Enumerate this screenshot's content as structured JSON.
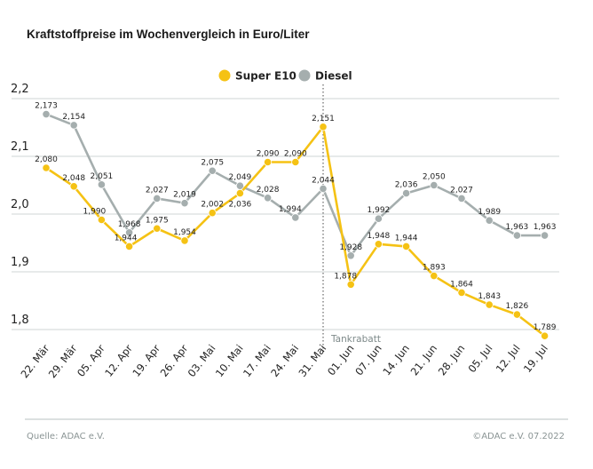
{
  "chart_data": {
    "type": "line",
    "title": "Kraftstoffpreise im Wochenvergleich in Euro/Liter",
    "categories": [
      "22. Mär",
      "29. Mär",
      "05. Apr",
      "12. Apr",
      "19. Apr",
      "26. Apr",
      "03. Mai",
      "10. Mai",
      "17. Mai",
      "24. Mai",
      "31. Mai",
      "01. Jun",
      "07. Jun",
      "14. Jun",
      "21. Jun",
      "28. Jun",
      "05. Jul",
      "12. Jul",
      "19. Jul"
    ],
    "series": [
      {
        "name": "Super E10",
        "color": "#f5c214",
        "values": [
          2.08,
          2.048,
          1.99,
          1.944,
          1.975,
          1.954,
          2.002,
          2.036,
          2.09,
          2.09,
          2.151,
          1.878,
          1.948,
          1.944,
          1.893,
          1.864,
          1.843,
          1.826,
          1.789
        ]
      },
      {
        "name": "Diesel",
        "color": "#a5aeae",
        "values": [
          2.173,
          2.154,
          2.051,
          1.968,
          2.027,
          2.019,
          2.075,
          2.049,
          2.028,
          1.994,
          2.044,
          1.928,
          1.992,
          2.036,
          2.05,
          2.027,
          1.989,
          1.963,
          1.963
        ]
      }
    ],
    "yticks": [
      "1,8",
      "1,9",
      "2,0",
      "2,1",
      "2,2"
    ],
    "ylim": [
      1.8,
      2.2
    ],
    "grid": true,
    "legend": "top-center",
    "annotation": {
      "label": "Tankrabatt",
      "category": "31. Mai"
    }
  },
  "footer": {
    "source": "Quelle: ADAC e.V.",
    "copyright": "©ADAC e.V.  07.2022"
  }
}
